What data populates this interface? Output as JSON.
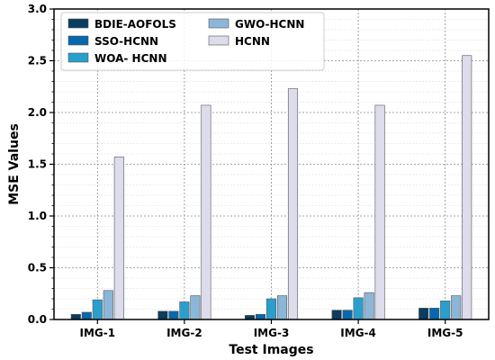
{
  "chart_data": {
    "type": "bar",
    "title": "",
    "xlabel": "Test Images",
    "ylabel": "MSE Values",
    "categories": [
      "IMG-1",
      "IMG-2",
      "IMG-3",
      "IMG-4",
      "IMG-5"
    ],
    "ylim": [
      0,
      3.0
    ],
    "yticks": [
      "0.0",
      "0.5",
      "1.0",
      "1.5",
      "2.0",
      "2.5",
      "3.0"
    ],
    "grid": true,
    "legend_position": "top-left",
    "series": [
      {
        "name": "BDIE-AOFOLS",
        "color": "#0a3d5f",
        "values": [
          0.05,
          0.08,
          0.04,
          0.09,
          0.11
        ]
      },
      {
        "name": "SSO-HCNN",
        "color": "#0868ac",
        "values": [
          0.07,
          0.08,
          0.05,
          0.09,
          0.11
        ]
      },
      {
        "name": "WOA- HCNN",
        "color": "#2a9fce",
        "values": [
          0.19,
          0.17,
          0.2,
          0.21,
          0.18
        ]
      },
      {
        "name": "GWO-HCNN",
        "color": "#8cb6d8",
        "values": [
          0.28,
          0.23,
          0.23,
          0.26,
          0.23
        ]
      },
      {
        "name": "HCNN",
        "color": "#dcdcec",
        "values": [
          1.57,
          2.07,
          2.23,
          2.07,
          2.55
        ]
      }
    ]
  }
}
